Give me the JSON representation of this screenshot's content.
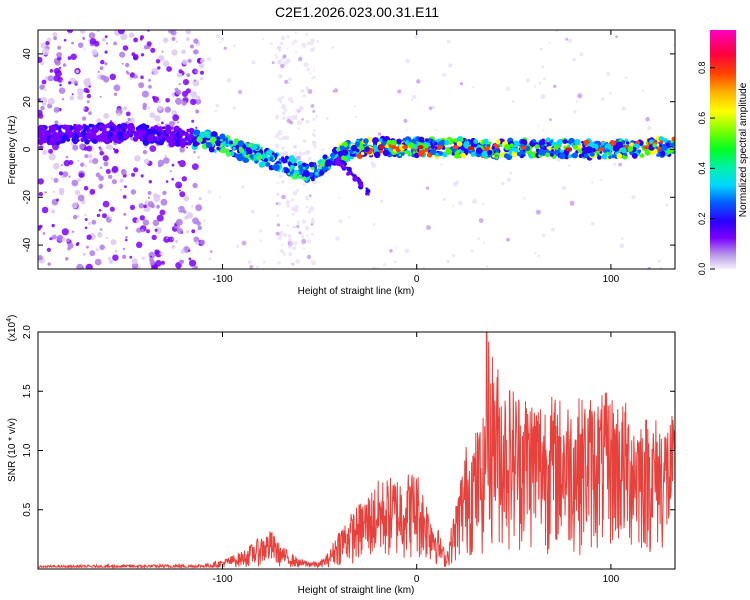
{
  "title": "C2E1.2026.023.00.31.E11",
  "chart_data": [
    {
      "type": "heatmap",
      "xlabel": "Height of straight line (km)",
      "ylabel": "Frequency (Hz)",
      "xlim": [
        -195,
        133
      ],
      "ylim": [
        -50,
        50
      ],
      "xticks": [
        -100,
        0,
        100
      ],
      "xtick_labels": [
        "-100",
        "0",
        "100"
      ],
      "yticks": [
        -40,
        -20,
        0,
        20,
        40
      ],
      "ytick_labels": [
        "-40",
        "-20",
        "0",
        "20",
        "40"
      ],
      "ridge": {
        "x": [
          -195,
          -160,
          -130,
          -110,
          -95,
          -80,
          -65,
          -55,
          -48,
          -42,
          -35,
          -25,
          -10,
          0,
          20,
          40,
          60,
          80,
          100,
          120,
          133
        ],
        "y": [
          6,
          7,
          6,
          4,
          1,
          -3,
          -7,
          -10,
          -7,
          -3,
          0,
          1,
          1,
          1,
          1,
          0,
          1,
          0,
          0,
          1,
          1
        ]
      },
      "colorbar": {
        "label": "Normalized spectral amplitude",
        "range": [
          0,
          0.95
        ],
        "ticks": [
          0.0,
          0.2,
          0.4,
          0.6,
          0.8
        ],
        "tick_labels": [
          "0.0",
          "0.2",
          "0.4",
          "0.6",
          "0.8"
        ]
      }
    },
    {
      "type": "line",
      "xlabel": "Height of straight line (km)",
      "ylabel": "SNR (10 * v/v)",
      "scale_note_prefix": "(x10",
      "scale_note_exp": "4",
      "scale_note_suffix": ")",
      "xlim": [
        -195,
        133
      ],
      "ylim": [
        0,
        2.0
      ],
      "xticks": [
        -100,
        0,
        100
      ],
      "xtick_labels": [
        "-100",
        "0",
        "100"
      ],
      "yticks": [
        0.5,
        1.0,
        1.5,
        2.0
      ],
      "ytick_labels": [
        "0.5",
        "1.0",
        "1.5",
        "2.0"
      ],
      "series": [
        {
          "name": "SNR",
          "color": "#e8413c",
          "envelope_x": [
            -195,
            -110,
            -100,
            -90,
            -80,
            -75,
            -70,
            -60,
            -50,
            -45,
            -40,
            -30,
            -20,
            -10,
            0,
            5,
            10,
            15,
            20,
            25,
            35,
            36,
            45,
            60,
            80,
            100,
            120,
            133
          ],
          "envelope_y": [
            0.03,
            0.04,
            0.08,
            0.15,
            0.28,
            0.33,
            0.2,
            0.08,
            0.06,
            0.15,
            0.35,
            0.55,
            0.75,
            0.8,
            0.85,
            0.6,
            0.4,
            0.12,
            0.55,
            1.05,
            1.3,
            2.0,
            1.6,
            1.5,
            1.45,
            1.5,
            1.3,
            1.3
          ],
          "peak_x": 36,
          "peak_y": 2.0
        }
      ]
    }
  ],
  "colors": {
    "line": "#e8413c",
    "colormap": [
      "#f5f0fa",
      "#7b00ff",
      "#0000ff",
      "#00e5ff",
      "#00ff00",
      "#ffff00",
      "#ff8000",
      "#ff0000",
      "#ff00aa"
    ]
  }
}
